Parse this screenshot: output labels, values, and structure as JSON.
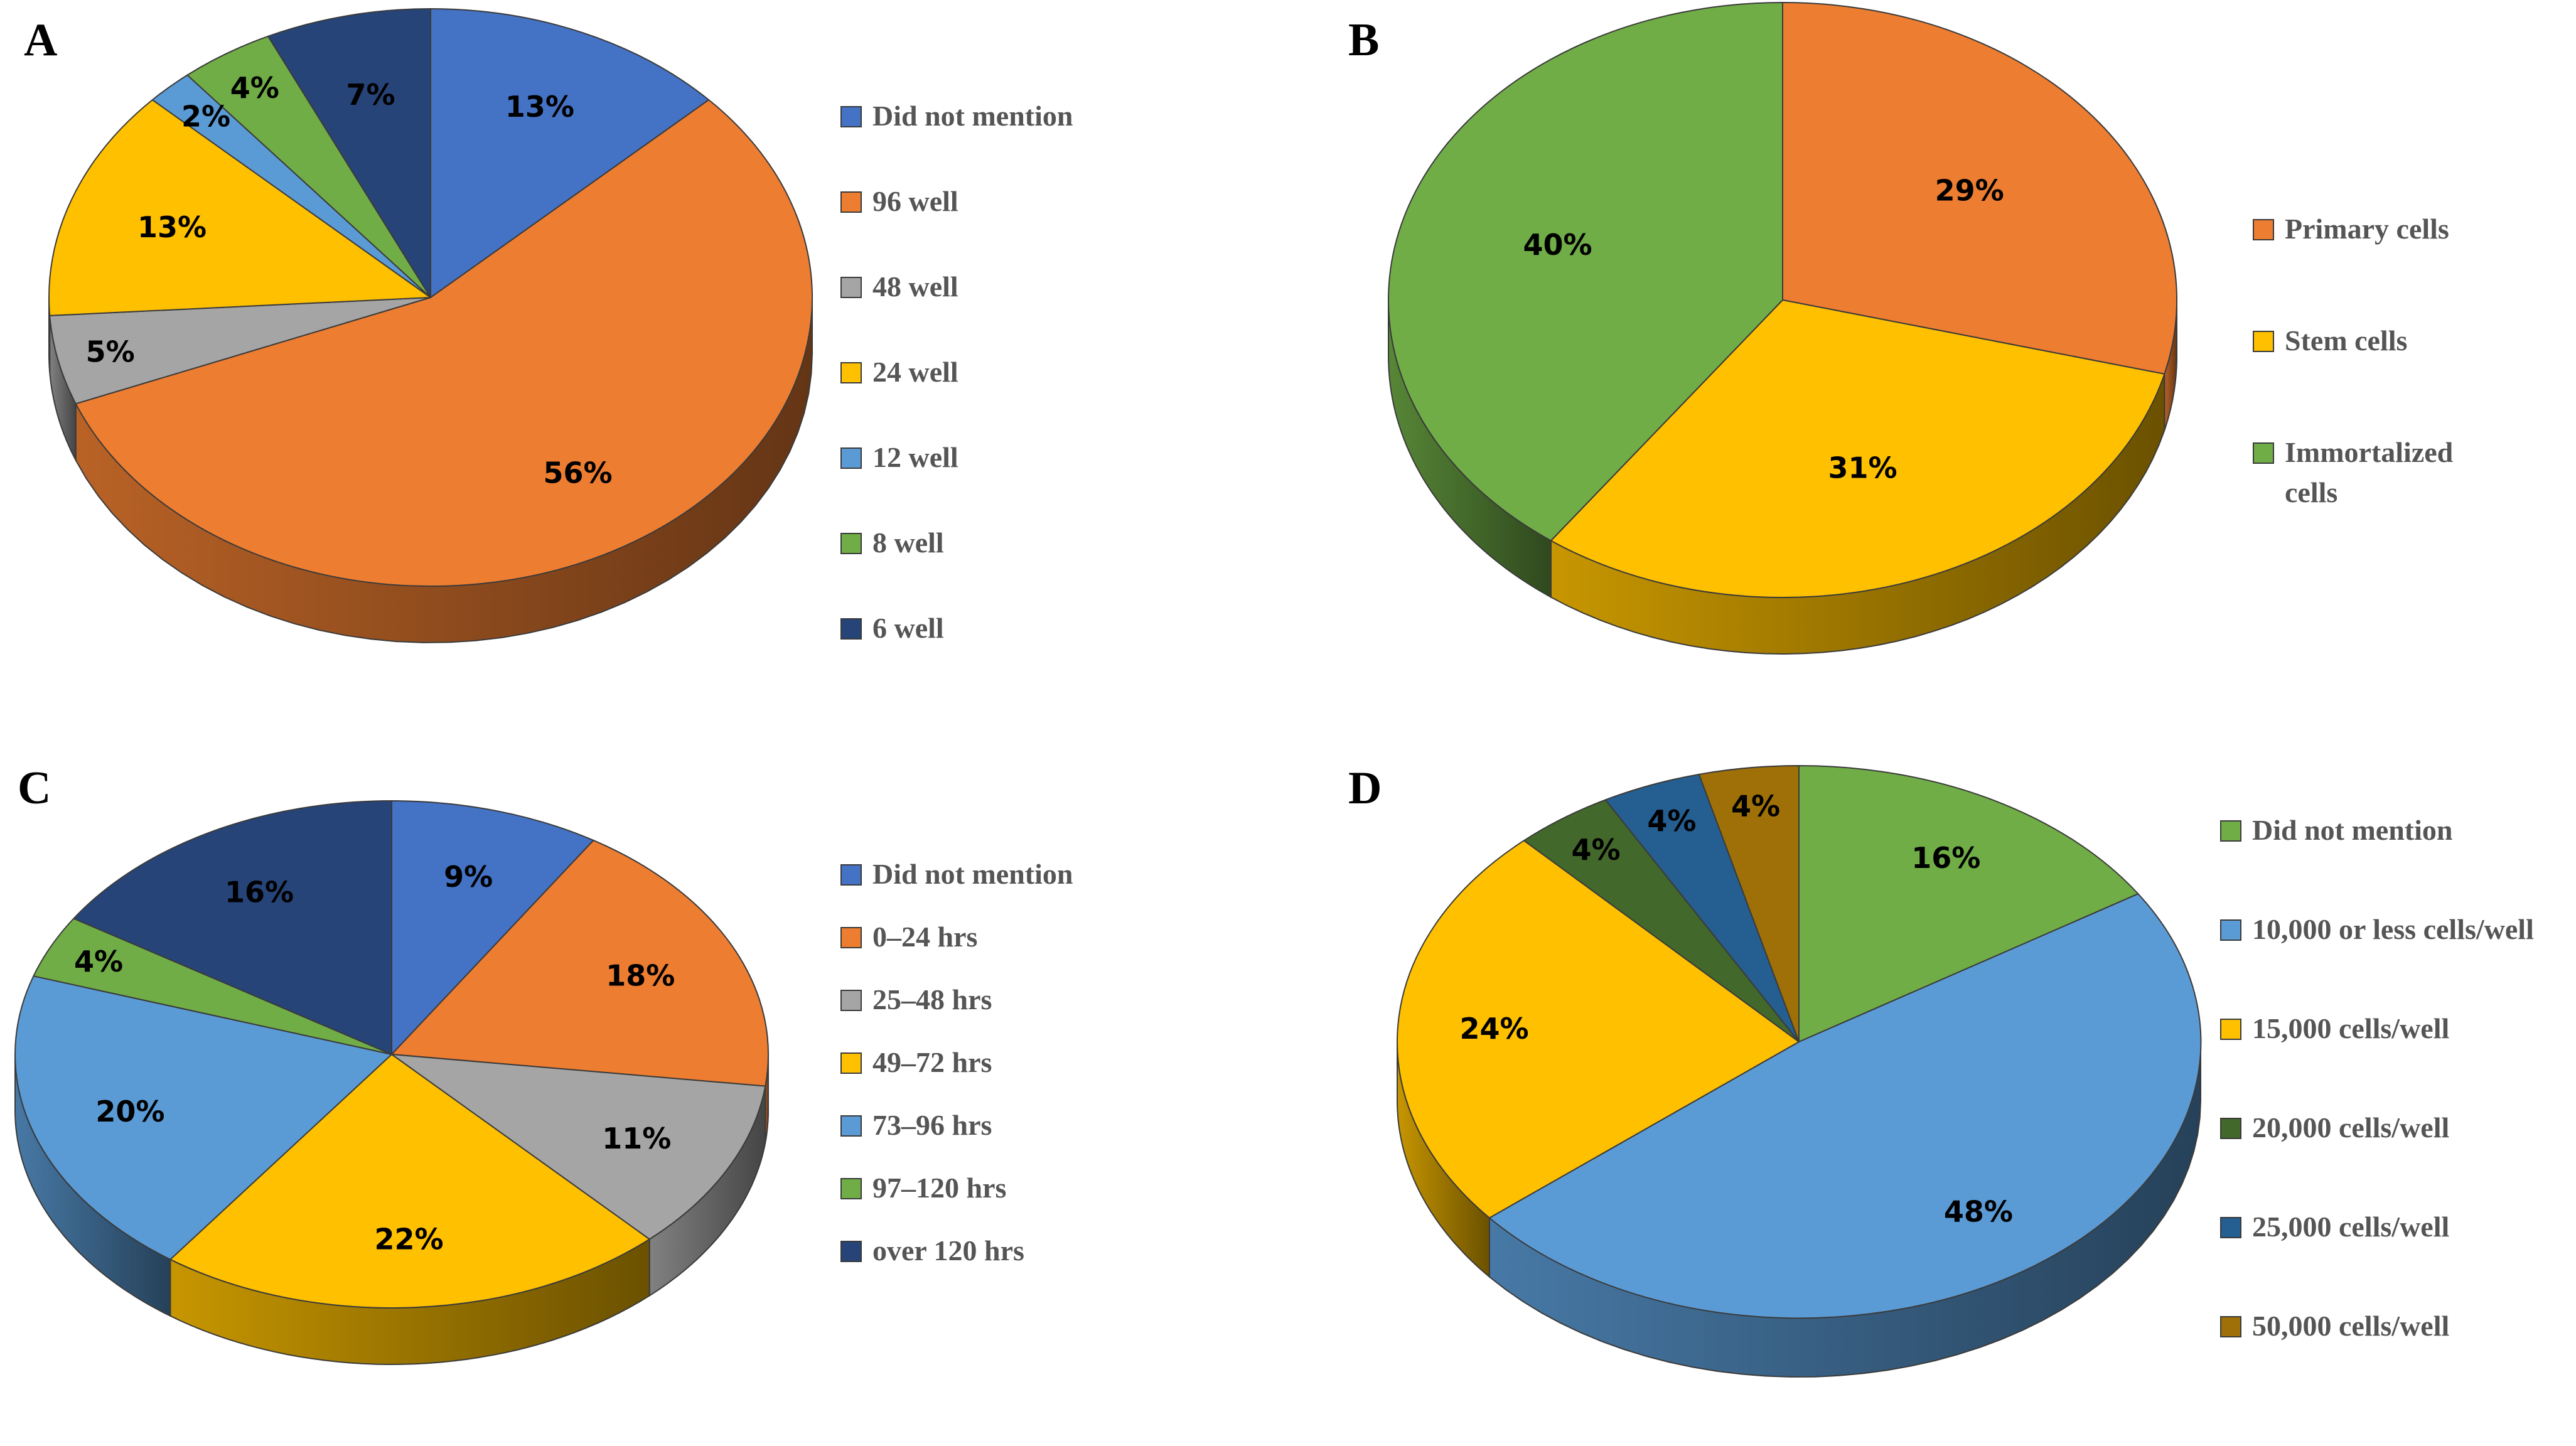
{
  "chart_data": [
    {
      "type": "pie",
      "panel": "A",
      "title": "",
      "legend_position": "right",
      "labels": [
        "Did not mention",
        "96 well",
        "48 well",
        "24 well",
        "12 well",
        "8 well",
        "6 well"
      ],
      "values": [
        13,
        56,
        5,
        13,
        2,
        4,
        7
      ],
      "value_labels": [
        "13%",
        "56%",
        "5%",
        "13%",
        "2%",
        "4%",
        "7%"
      ],
      "colors": [
        "#4472C4",
        "#ED7D31",
        "#A5A5A5",
        "#FFC000",
        "#5B9BD5",
        "#70AD47",
        "#264478"
      ]
    },
    {
      "type": "pie",
      "panel": "B",
      "title": "",
      "legend_position": "right",
      "labels": [
        "Primary cells",
        "Stem cells",
        "Immortalized cells"
      ],
      "legend_lines": [
        [
          "Primary cells"
        ],
        [
          "Stem cells"
        ],
        [
          "Immortalized",
          "cells"
        ]
      ],
      "values": [
        29,
        31,
        40
      ],
      "value_labels": [
        "29%",
        "31%",
        "40%"
      ],
      "colors": [
        "#ED7D31",
        "#FFC000",
        "#70AD47"
      ]
    },
    {
      "type": "pie",
      "panel": "C",
      "title": "",
      "legend_position": "right",
      "labels": [
        "Did not mention",
        "0–24 hrs",
        "25–48 hrs",
        "49–72 hrs",
        "73–96 hrs",
        "97–120 hrs",
        "over 120 hrs"
      ],
      "values": [
        9,
        18,
        11,
        22,
        20,
        4,
        16
      ],
      "value_labels": [
        "9%",
        "18%",
        "11%",
        "22%",
        "20%",
        "4%",
        "16%"
      ],
      "colors": [
        "#4472C4",
        "#ED7D31",
        "#A5A5A5",
        "#FFC000",
        "#5B9BD5",
        "#70AD47",
        "#264478"
      ]
    },
    {
      "type": "pie",
      "panel": "D",
      "title": "",
      "legend_position": "right",
      "labels": [
        "Did not mention",
        "10,000 or less cells/well",
        "15,000 cells/well",
        "20,000 cells/well",
        "25,000 cells/well",
        "50,000 cells/well"
      ],
      "values": [
        16,
        48,
        24,
        4,
        4,
        4
      ],
      "value_labels": [
        "16%",
        "48%",
        "24%",
        "4%",
        "4%",
        "4%"
      ],
      "colors": [
        "#70AD47",
        "#5B9BD5",
        "#FFC000",
        "#43682B",
        "#255E91",
        "#9E7007"
      ]
    }
  ]
}
